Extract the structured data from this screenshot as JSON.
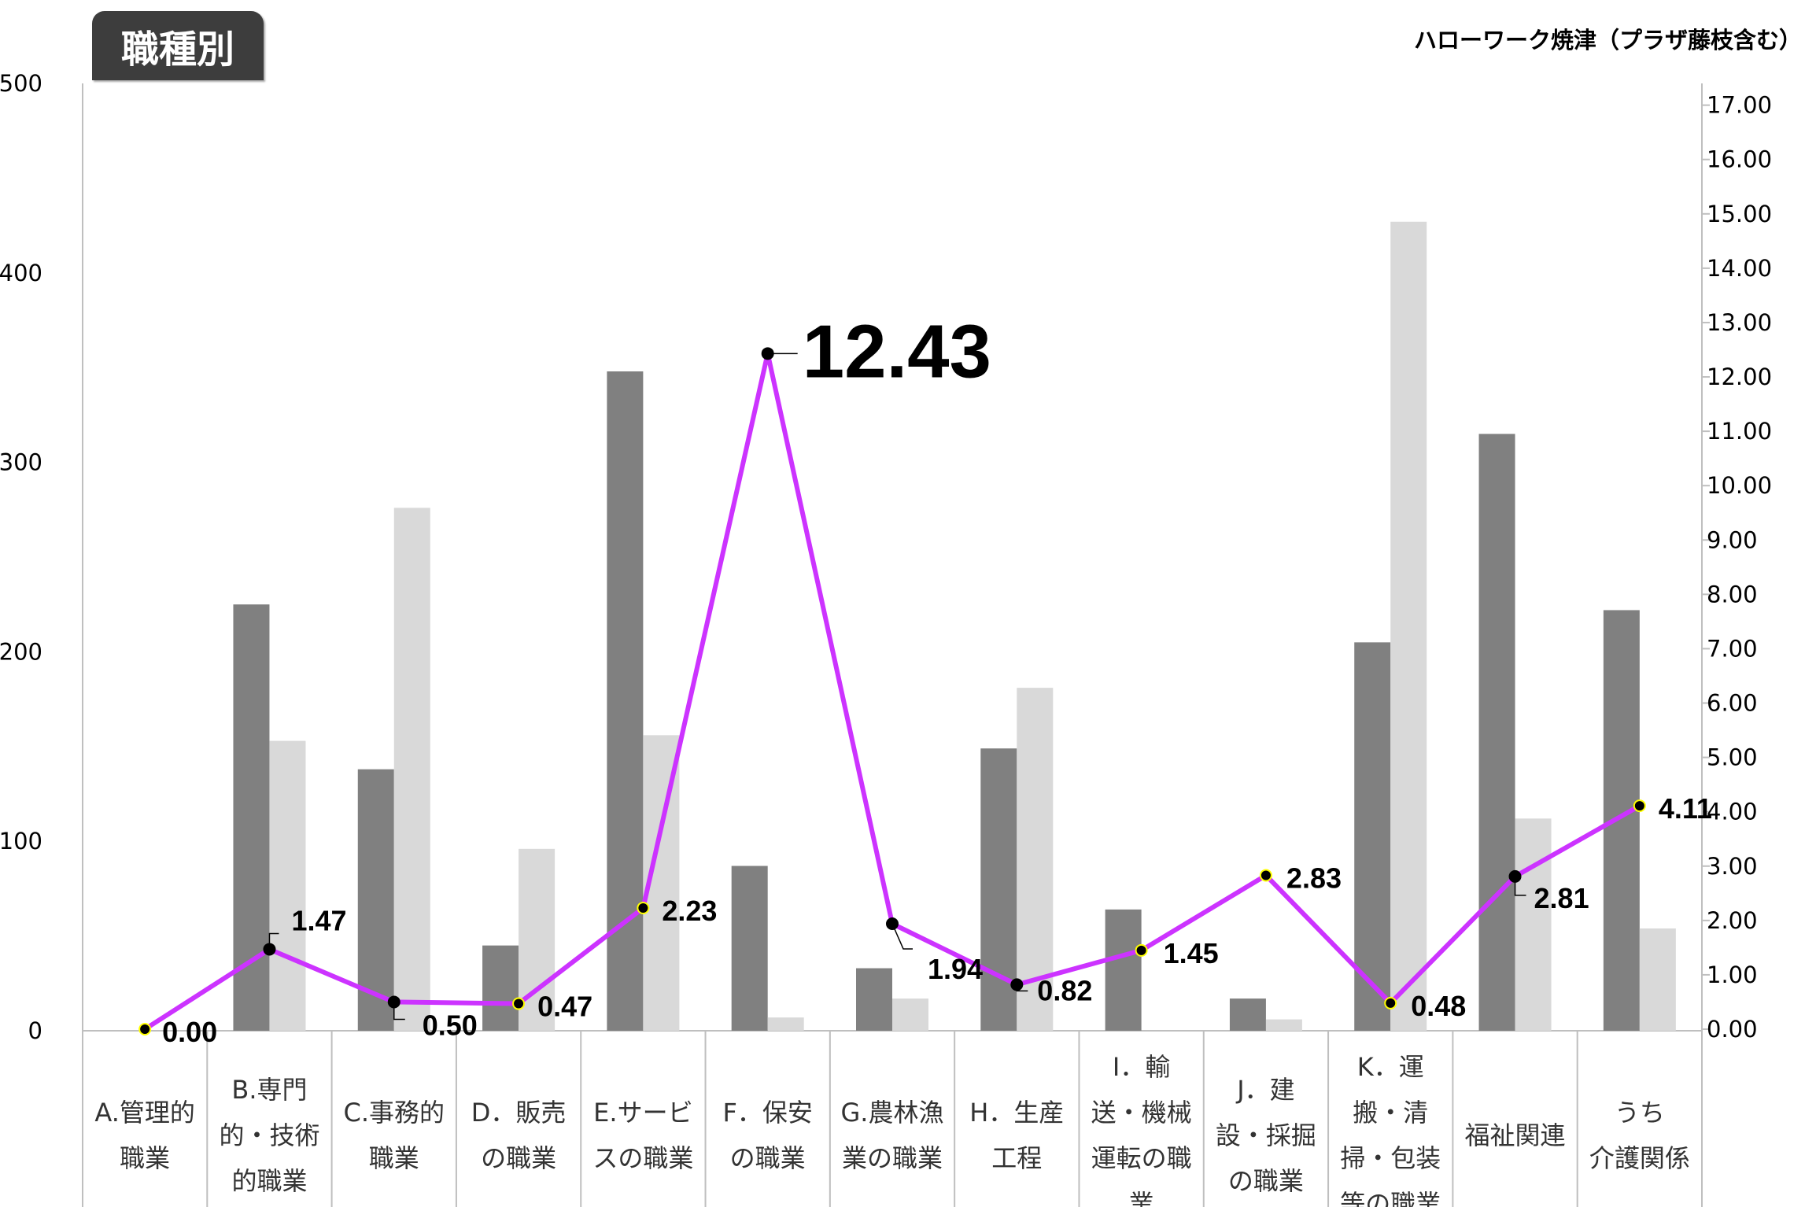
{
  "header": {
    "tab_label": "職種別",
    "source_label": "ハローワーク焼津（プラザ藤枝含む）"
  },
  "colors": {
    "series_dark": "#808080",
    "series_light": "#d9d9d9",
    "ratio_line": "#cc33ff",
    "marker": "#000000",
    "marker_outline": "#ffff00"
  },
  "chart_data": {
    "type": "bar",
    "categories": [
      [
        "A.管理的",
        "職業"
      ],
      [
        "B.専門",
        "的・技術",
        "的職業"
      ],
      [
        "C.事務的",
        "職業"
      ],
      [
        "D．販売",
        "の職業"
      ],
      [
        "E.サービ",
        "スの職業"
      ],
      [
        "F．保安",
        "の職業"
      ],
      [
        "G.農林漁",
        "業の職業"
      ],
      [
        "H．生産",
        "工程"
      ],
      [
        "I．輸",
        "送・機械",
        "運転の職",
        "業"
      ],
      [
        "J．建",
        "設・採掘",
        "の職業"
      ],
      [
        "K．運",
        "搬・清",
        "掃・包装",
        "等の職業"
      ],
      [
        "福祉関連"
      ],
      [
        "うち",
        "介護関係"
      ]
    ],
    "series": [
      {
        "values": [
          0,
          225,
          138,
          45,
          348,
          87,
          33,
          149,
          64,
          17,
          205,
          315,
          222
        ]
      },
      {
        "values": [
          0,
          153,
          276,
          96,
          156,
          7,
          17,
          181,
          0,
          6,
          427,
          112,
          54
        ]
      },
      {
        "values": [
          0.0,
          1.47,
          0.5,
          0.47,
          2.23,
          12.43,
          1.94,
          0.82,
          1.45,
          2.83,
          0.48,
          2.81,
          4.11
        ],
        "axis": "right",
        "type": "line"
      }
    ],
    "data_labels": [
      "0.00",
      "1.47",
      "0.50",
      "0.47",
      "2.23",
      "12.43",
      "1.94",
      "0.82",
      "1.45",
      "2.83",
      "0.48",
      "2.81",
      "4.11"
    ],
    "left_axis": {
      "ylim": [
        0,
        500
      ],
      "ticks": [
        "0",
        "100",
        "200",
        "300",
        "400",
        "500"
      ]
    },
    "right_axis": {
      "ylim": [
        0,
        17.4
      ],
      "ticks": [
        "0.00",
        "1.00",
        "2.00",
        "3.00",
        "4.00",
        "5.00",
        "6.00",
        "7.00",
        "8.00",
        "9.00",
        "10.00",
        "11.00",
        "12.00",
        "13.00",
        "14.00",
        "15.00",
        "16.00",
        "17.00"
      ]
    },
    "grid": false,
    "legend": "none"
  }
}
